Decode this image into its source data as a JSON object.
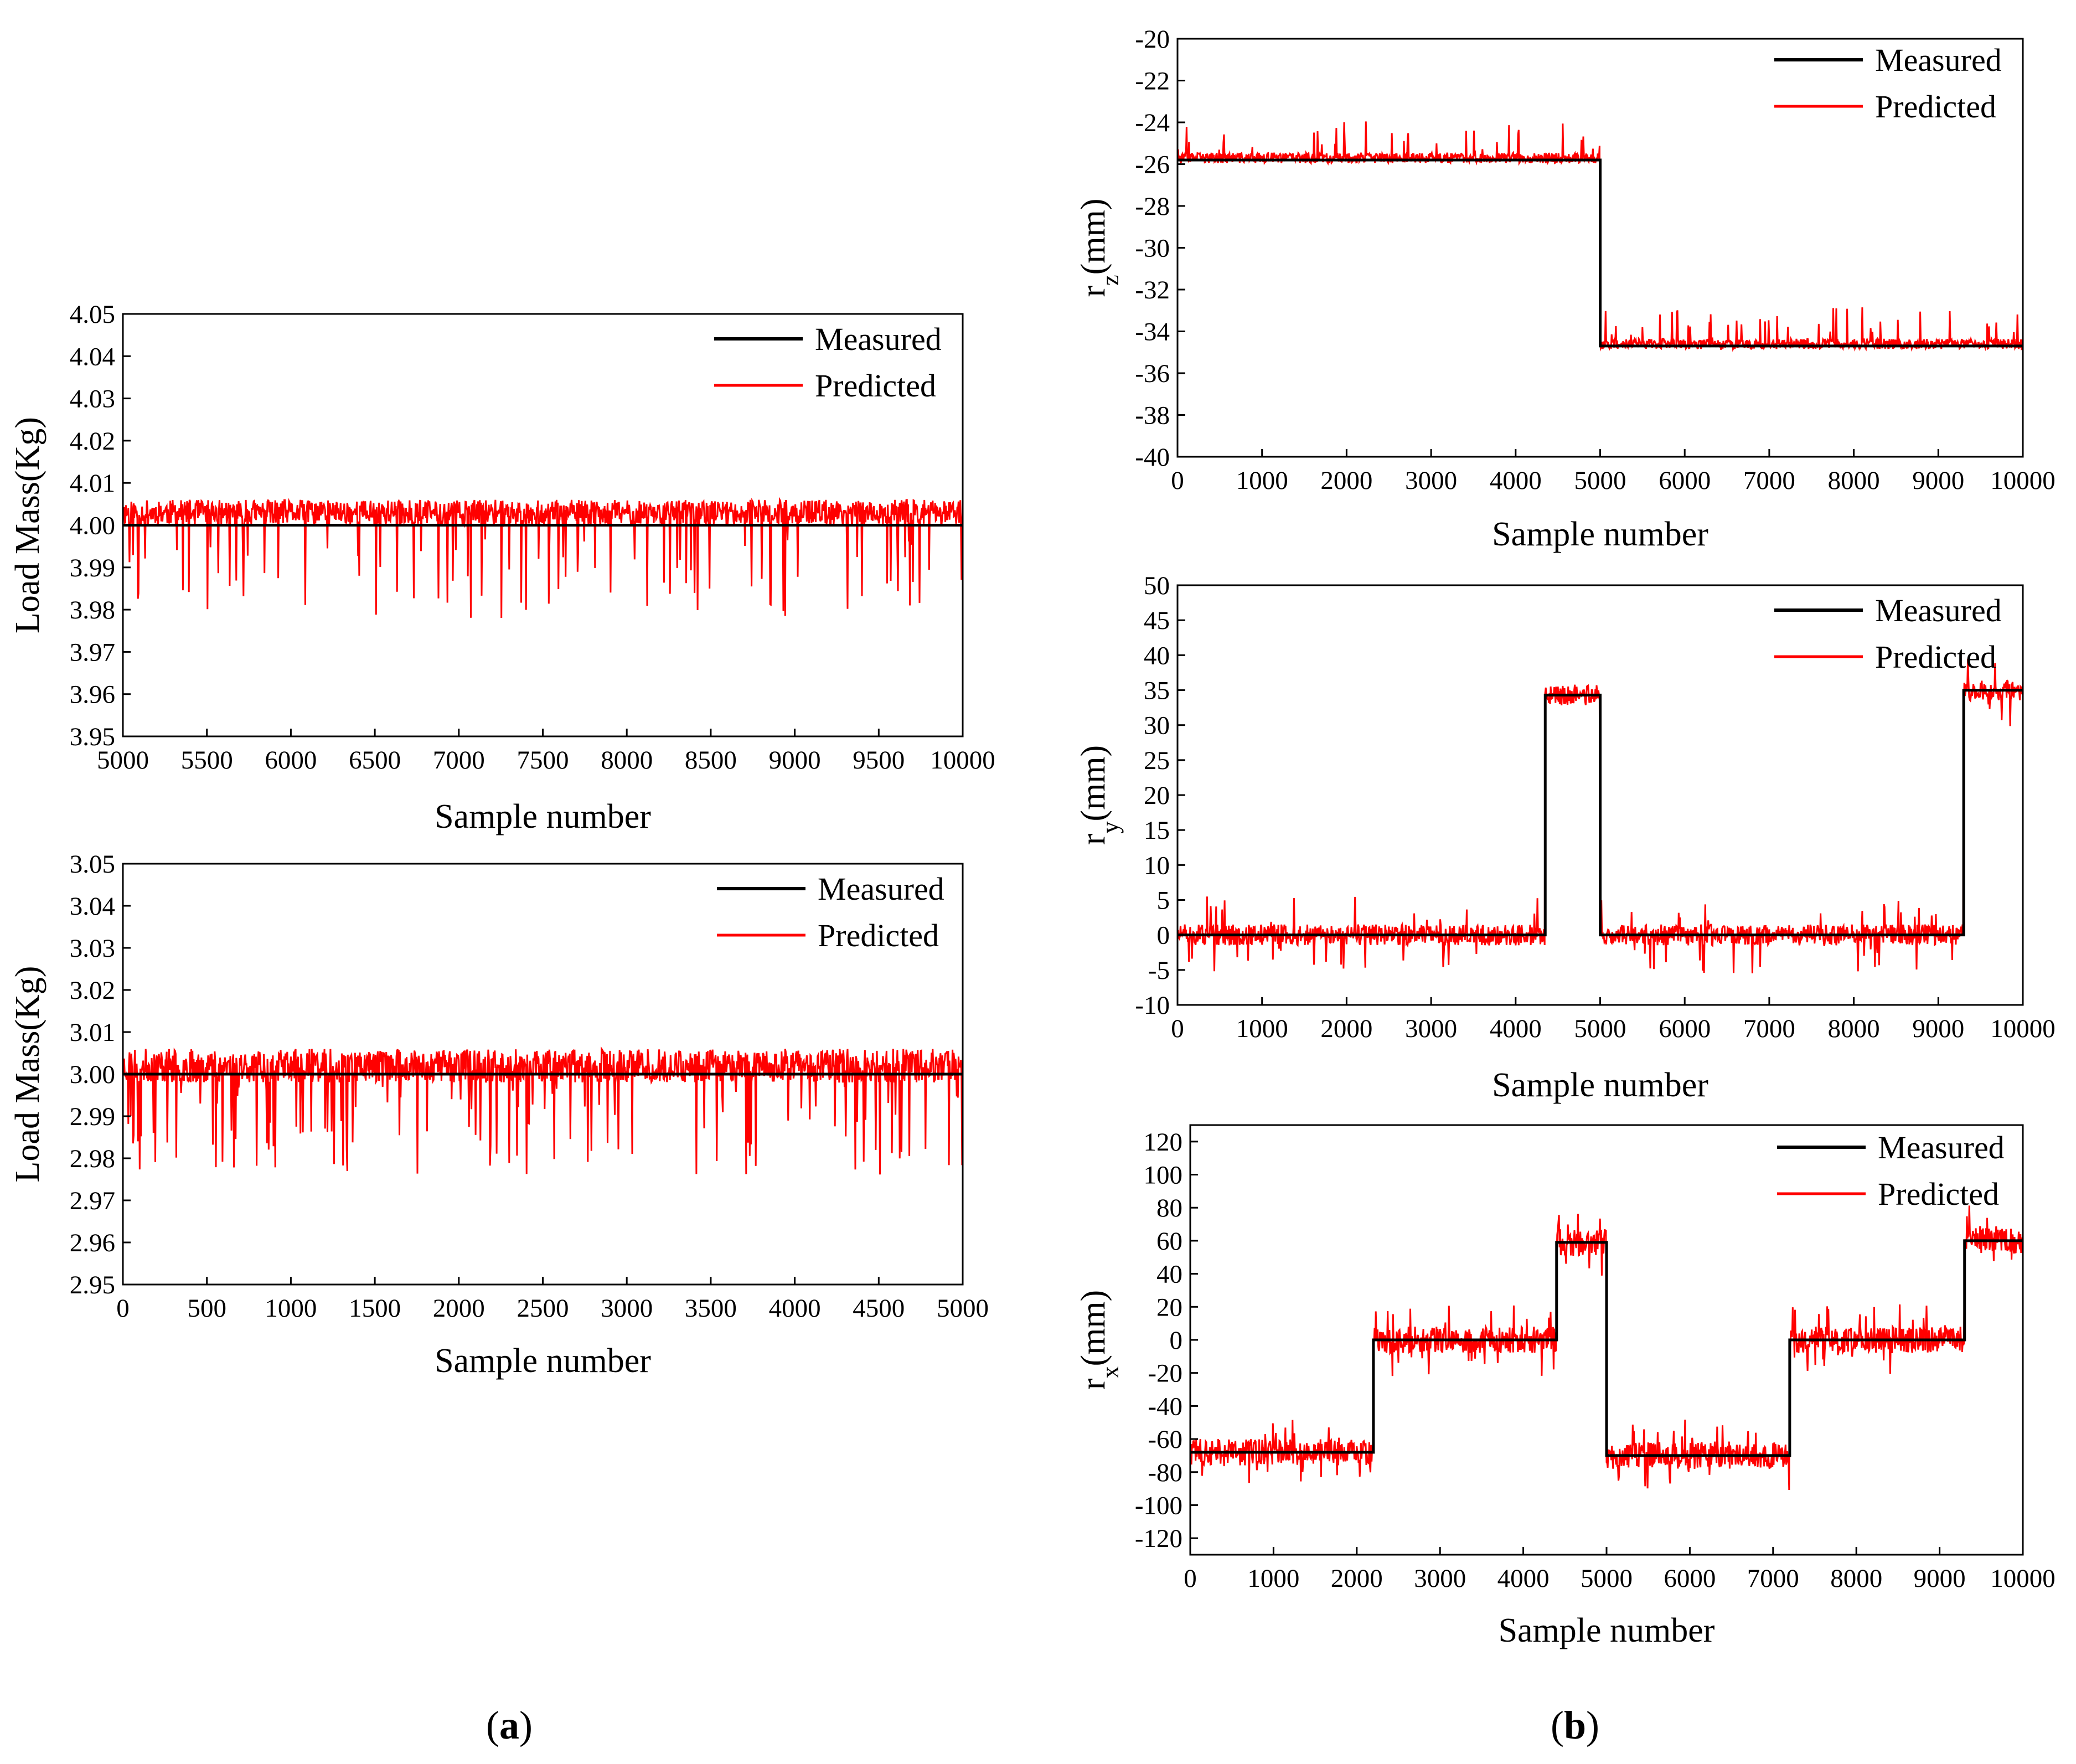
{
  "colors": {
    "measured": "#000000",
    "predicted": "#ff0000",
    "axis": "#000000"
  },
  "panel_labels": [
    {
      "prefix": "(",
      "letter": "a",
      "suffix": ")"
    },
    {
      "prefix": "(",
      "letter": "b",
      "suffix": ")"
    }
  ],
  "chart_data": [
    {
      "id": "mass-upper",
      "type": "line",
      "title": "",
      "xlabel": "Sample number",
      "ylabel": "Load Mass(Kg)",
      "xlim": [
        5000,
        10000
      ],
      "ylim": [
        3.95,
        4.05
      ],
      "xticks": [
        5000,
        5500,
        6000,
        6500,
        7000,
        7500,
        8000,
        8500,
        9000,
        9500,
        10000
      ],
      "yticks": [
        3.95,
        3.96,
        3.97,
        3.98,
        3.99,
        4.0,
        4.01,
        4.02,
        4.03,
        4.04,
        4.05
      ],
      "ydecimals": 2,
      "legend_position": "top-right",
      "series": [
        {
          "name": "Measured",
          "color": "#000000",
          "steps": [
            [
              5000,
              4.0
            ]
          ],
          "line_kind": "measured"
        },
        {
          "name": "Predicted",
          "color": "#ff0000",
          "line_kind": "predicted",
          "noise": {
            "base_offset": 0.002,
            "amp_up": 0.004,
            "amp_down": 0.002,
            "spike_prob": 0.05,
            "spike_min": 0.005,
            "spike_max": 0.024,
            "spike_dir": -1,
            "seed": 11
          }
        }
      ]
    },
    {
      "id": "mass-lower",
      "type": "line",
      "title": "",
      "xlabel": "Sample number",
      "ylabel": "Load Mass(Kg)",
      "xlim": [
        0,
        5000
      ],
      "ylim": [
        2.95,
        3.05
      ],
      "xticks": [
        0,
        500,
        1000,
        1500,
        2000,
        2500,
        3000,
        3500,
        4000,
        4500,
        5000
      ],
      "yticks": [
        2.95,
        2.96,
        2.97,
        2.98,
        2.99,
        3.0,
        3.01,
        3.02,
        3.03,
        3.04,
        3.05
      ],
      "ydecimals": 2,
      "legend_position": "top-right",
      "series": [
        {
          "name": "Measured",
          "color": "#000000",
          "steps": [
            [
              0,
              3.0
            ]
          ],
          "line_kind": "measured"
        },
        {
          "name": "Predicted",
          "color": "#ff0000",
          "line_kind": "predicted",
          "noise": {
            "base_offset": 0.002,
            "amp_up": 0.004,
            "amp_down": 0.004,
            "spike_prob": 0.08,
            "spike_min": 0.005,
            "spike_max": 0.026,
            "spike_dir": -1,
            "seed": 23
          }
        }
      ]
    },
    {
      "id": "rz",
      "type": "line",
      "title": "",
      "xlabel": "Sample number",
      "ylabel_main": "r",
      "ylabel_sub": "z",
      "ylabel_unit": "(mm)",
      "xlim": [
        0,
        10000
      ],
      "ylim": [
        -40,
        -20
      ],
      "xticks": [
        0,
        1000,
        2000,
        3000,
        4000,
        5000,
        6000,
        7000,
        8000,
        9000,
        10000
      ],
      "yticks": [
        -40,
        -38,
        -36,
        -34,
        -32,
        -30,
        -28,
        -26,
        -24,
        -22,
        -20
      ],
      "ydecimals": 0,
      "legend_position": "top-right",
      "series": [
        {
          "name": "Measured",
          "color": "#000000",
          "steps": [
            [
              0,
              -25.8
            ],
            [
              5000,
              -34.7
            ]
          ],
          "line_kind": "measured"
        },
        {
          "name": "Predicted",
          "color": "#ff0000",
          "line_kind": "predicted",
          "noise": {
            "base_offset": 0.05,
            "amp_up": 0.3,
            "amp_down": 0.2,
            "spike_prob": 0.05,
            "spike_min": 0.4,
            "spike_max": 1.8,
            "spike_dir": 1,
            "seed": 37
          }
        }
      ]
    },
    {
      "id": "ry",
      "type": "line",
      "title": "",
      "xlabel": "Sample number",
      "ylabel_main": "r",
      "ylabel_sub": "y",
      "ylabel_unit": "(mm)",
      "xlim": [
        0,
        10000
      ],
      "ylim": [
        -10,
        50
      ],
      "xticks": [
        0,
        1000,
        2000,
        3000,
        4000,
        5000,
        6000,
        7000,
        8000,
        9000,
        10000
      ],
      "yticks": [
        -10,
        -5,
        0,
        5,
        10,
        15,
        20,
        25,
        30,
        35,
        40,
        45,
        50
      ],
      "ydecimals": 0,
      "legend_position": "top-right",
      "series": [
        {
          "name": "Measured",
          "color": "#000000",
          "steps": [
            [
              0,
              0
            ],
            [
              4350,
              34.3
            ],
            [
              5000,
              0
            ],
            [
              9300,
              35
            ]
          ],
          "line_kind": "measured"
        },
        {
          "name": "Predicted",
          "color": "#ff0000",
          "line_kind": "predicted",
          "noise": {
            "base_offset": 0,
            "amp_up": 1.5,
            "amp_down": 1.5,
            "spike_prob": 0.06,
            "spike_min": 1.5,
            "spike_max": 5.5,
            "spike_dir": 0,
            "seed": 51
          }
        }
      ]
    },
    {
      "id": "rx",
      "type": "line",
      "title": "",
      "xlabel": "Sample number",
      "ylabel_main": "r",
      "ylabel_sub": "x",
      "ylabel_unit": "(mm)",
      "xlim": [
        0,
        10000
      ],
      "ylim": [
        -130,
        130
      ],
      "xticks": [
        0,
        1000,
        2000,
        3000,
        4000,
        5000,
        6000,
        7000,
        8000,
        9000,
        10000
      ],
      "yticks": [
        -120,
        -100,
        -80,
        -60,
        -40,
        -20,
        0,
        20,
        40,
        60,
        80,
        100,
        120
      ],
      "ydecimals": 0,
      "legend_position": "top-right",
      "series": [
        {
          "name": "Measured",
          "color": "#000000",
          "steps": [
            [
              0,
              -68
            ],
            [
              2200,
              0
            ],
            [
              4400,
              59
            ],
            [
              5000,
              -70
            ],
            [
              7200,
              0
            ],
            [
              9300,
              60
            ]
          ],
          "line_kind": "measured"
        },
        {
          "name": "Predicted",
          "color": "#ff0000",
          "line_kind": "predicted",
          "noise": {
            "base_offset": 0,
            "amp_up": 8,
            "amp_down": 8,
            "spike_prob": 0.07,
            "spike_min": 8,
            "spike_max": 22,
            "spike_dir": 0,
            "seed": 73
          }
        }
      ]
    }
  ]
}
